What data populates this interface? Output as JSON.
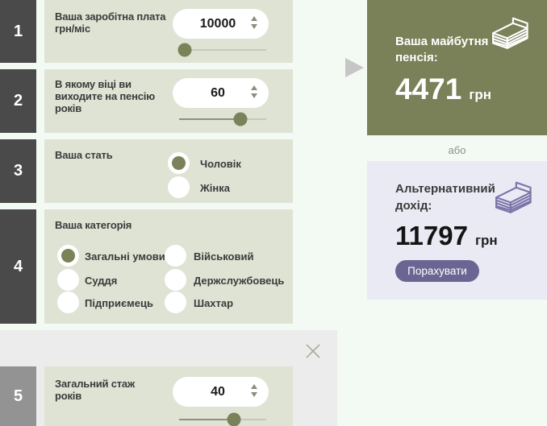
{
  "colors": {
    "accent_olive": "#7a8058",
    "accent_purple": "#6b6593",
    "panel_sage": "#dee3d4",
    "panel_lavender": "#e9eaf4",
    "badge_dark": "#4a4a4a",
    "badge_light": "#939393"
  },
  "steps": [
    {
      "number": "1",
      "label": "Ваша заробітна плата",
      "unit": "грн/міс",
      "value": "10000",
      "slider_percent": 6.5
    },
    {
      "number": "2",
      "label": "В якому віці ви виходите на пенсію",
      "unit": "років",
      "value": "60",
      "slider_percent": 70
    },
    {
      "number": "3",
      "label": "Ваша стать",
      "options": [
        {
          "label": "Чоловік",
          "selected": true
        },
        {
          "label": "Жінка",
          "selected": false
        }
      ]
    },
    {
      "number": "4",
      "label": "Ваша категорія",
      "options": [
        {
          "label": "Загальні умови",
          "selected": true
        },
        {
          "label": "Військовий",
          "selected": false
        },
        {
          "label": "Суддя",
          "selected": false
        },
        {
          "label": "Держслужбовець",
          "selected": false
        },
        {
          "label": "Підприємець",
          "selected": false
        },
        {
          "label": "Шахтар",
          "selected": false
        }
      ]
    },
    {
      "number": "5",
      "label": "Загальний стаж",
      "unit": "років",
      "value": "40",
      "slider_percent": 63
    }
  ],
  "results": {
    "pension_title_line1": "Ваша майбутня",
    "pension_title_line2": "пенсія:",
    "pension_amount": "4471",
    "pension_currency": "грн",
    "pension_icon": "money-stack-icon",
    "or_label": "або",
    "alt_title_line1": "Альтернативний",
    "alt_title_line2": "дохід:",
    "alt_amount": "11797",
    "alt_currency": "грн",
    "alt_icon": "money-stack-icon",
    "calculate_button": "Порахувати"
  },
  "icons": {
    "close": "close-icon",
    "arrow": "arrow-right-icon",
    "spin_up": "spin-up-icon",
    "spin_down": "spin-down-icon"
  }
}
